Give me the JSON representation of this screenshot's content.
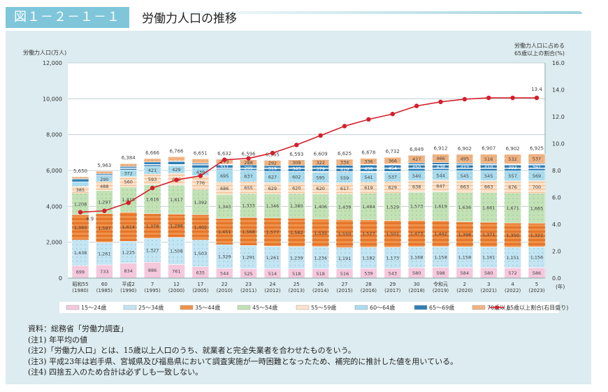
{
  "header": {
    "figure_number": "図１－２－１－１",
    "title": "労働力人口の推移"
  },
  "chart_data": {
    "type": "bar",
    "stacked": true,
    "title": "労働力人口の推移",
    "ylabel": "労働力人口(万人)",
    "y2label_line1": "労働力人口に占める",
    "y2label_line2": "65歳以上の割合(%)",
    "xunit": "(年)",
    "ylim": [
      0,
      12000
    ],
    "y2lim": [
      0,
      16
    ],
    "yticks": [
      "0",
      "2,000",
      "4,000",
      "6,000",
      "8,000",
      "10,000",
      "12,000"
    ],
    "y2ticks": [
      "0.0",
      "2.0",
      "4.0",
      "6.0",
      "8.0",
      "10.0",
      "12.0",
      "14.0",
      "16.0"
    ],
    "grid": true,
    "legend_position": "bottom",
    "categories": [
      {
        "era": "昭和55",
        "year": "(1980)"
      },
      {
        "era": "60",
        "year": "(1985)"
      },
      {
        "era": "平成2",
        "year": "(1990)"
      },
      {
        "era": "7",
        "year": "(1995)"
      },
      {
        "era": "12",
        "year": "(2000)"
      },
      {
        "era": "17",
        "year": "(2005)"
      },
      {
        "era": "22",
        "year": "(2010)"
      },
      {
        "era": "23",
        "year": "(2011)"
      },
      {
        "era": "24",
        "year": "(2012)"
      },
      {
        "era": "25",
        "year": "(2013)"
      },
      {
        "era": "26",
        "year": "(2014)"
      },
      {
        "era": "27",
        "year": "(2015)"
      },
      {
        "era": "28",
        "year": "(2016)"
      },
      {
        "era": "29",
        "year": "(2017)"
      },
      {
        "era": "30",
        "year": "(2018)"
      },
      {
        "era": "令和元",
        "year": "(2019)"
      },
      {
        "era": "2",
        "year": "(2020)"
      },
      {
        "era": "3",
        "year": "(2021)"
      },
      {
        "era": "4",
        "year": "(2022)"
      },
      {
        "era": "5",
        "year": "(2023)"
      }
    ],
    "totals": [
      5650,
      5963,
      6384,
      6666,
      6766,
      6651,
      6632,
      6596,
      6565,
      6593,
      6609,
      6625,
      6678,
      6732,
      6849,
      6912,
      6902,
      6907,
      6902,
      6925
    ],
    "series": [
      {
        "name": "15～24歳",
        "color": "#f5c8dd",
        "pattern": "plain",
        "values": [
          699,
          733,
          834,
          886,
          761,
          635,
          544,
          525,
          514,
          518,
          518,
          516,
          539,
          543,
          580,
          598,
          584,
          580,
          572,
          586
        ]
      },
      {
        "name": "25～34歳",
        "color": "#c3e5f4",
        "pattern": "dots",
        "values": [
          1438,
          1261,
          1225,
          1327,
          1508,
          1503,
          1329,
          1291,
          1261,
          1239,
          1234,
          1191,
          1182,
          1173,
          1168,
          1158,
          1158,
          1161,
          1151,
          1156
        ]
      },
      {
        "name": "35～44歳",
        "color": "#f0924a",
        "pattern": "stripes",
        "values": [
          1393,
          1597,
          1614,
          1378,
          1296,
          1402,
          1451,
          1568,
          1577,
          1582,
          1535,
          1550,
          1527,
          1501,
          1473,
          1442,
          1398,
          1371,
          1350,
          1321
        ]
      },
      {
        "name": "45～54歳",
        "color": "#c2e2b4",
        "pattern": "dots",
        "values": [
          1208,
          1297,
          1418,
          1616,
          1617,
          1392,
          1343,
          1333,
          1346,
          1380,
          1406,
          1439,
          1484,
          1529,
          1573,
          1619,
          1636,
          1661,
          1671,
          1665
        ]
      },
      {
        "name": "55～59歳",
        "color": "#fbe3cc",
        "pattern": "stripes-light",
        "values": [
          385,
          488,
          560,
          593,
          666,
          776,
          686,
          655,
          629,
          620,
          620,
          617,
          619,
          629,
          638,
          647,
          663,
          663,
          676,
          700
        ]
      },
      {
        "name": "60～64歳",
        "color": "#a9dcef",
        "pattern": "dots",
        "values": [
          248,
          290,
          372,
          421,
          429,
          439,
          695,
          637,
          627,
          602,
          595,
          559,
          541,
          537,
          540,
          544,
          545,
          545,
          557,
          569
        ]
      },
      {
        "name": "65～69歳",
        "color": "#2e7fb5",
        "pattern": "stripes-blue",
        "values": [
          165,
          160,
          200,
          253,
          260,
          255,
          311,
          299,
          319,
          343,
          379,
          419,
          450,
          454,
          450,
          438,
          423,
          410,
          393,
          391
        ]
      },
      {
        "name": "70歳以上",
        "color": "#f3b27f",
        "pattern": "dots",
        "values": [
          114,
          137,
          161,
          192,
          229,
          249,
          273,
          288,
          292,
          309,
          322,
          334,
          336,
          366,
          427,
          466,
          495,
          516,
          532,
          537
        ]
      }
    ],
    "line": {
      "name": "65歳以上割合(右目盛り)",
      "color": "#d41f2a",
      "axis": "right",
      "values": [
        4.9,
        5.0,
        5.6,
        6.7,
        7.3,
        7.6,
        8.8,
        8.9,
        9.3,
        9.9,
        10.6,
        11.3,
        11.8,
        12.2,
        12.8,
        13.1,
        13.3,
        13.4,
        13.4,
        13.4
      ],
      "labels": {
        "first": "4.9",
        "last": "13.4"
      }
    }
  },
  "notes": [
    "資料：総務省「労働力調査」",
    "(注1) 年平均の値",
    "(注2)「労働力人口」とは、15歳以上人口のうち、就業者と完全失業者を合わせたものをいう。",
    "(注3) 平成23年は岩手県、宮城県及び福島県において調査実施が一時困難となったため、補完的に推計した値を用いている。",
    "(注4) 四捨五入のため合計は必ずしも一致しない。"
  ]
}
